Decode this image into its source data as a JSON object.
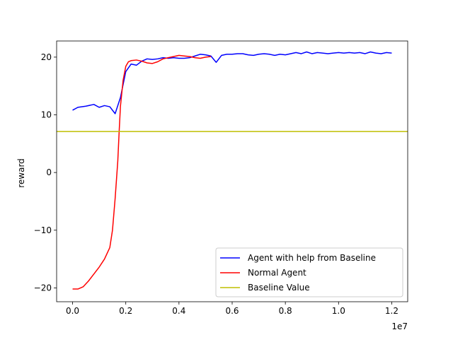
{
  "chart_data": {
    "type": "line",
    "title": "",
    "xlabel": "",
    "ylabel": "reward",
    "x_offset_label": "1e7",
    "xlim": [
      -0.06,
      1.26
    ],
    "ylim": [
      -22.4,
      22.8
    ],
    "x_ticks": [
      0.0,
      0.2,
      0.4,
      0.6,
      0.8,
      1.0,
      1.2
    ],
    "x_tick_labels": [
      "0.0",
      "0.2",
      "0.4",
      "0.6",
      "0.8",
      "1.0",
      "1.2"
    ],
    "y_ticks": [
      -20,
      -10,
      0,
      10,
      20
    ],
    "y_tick_labels": [
      "−20",
      "−10",
      "0",
      "10",
      "20"
    ],
    "grid": false,
    "legend_position": "lower-right",
    "series": [
      {
        "name": "Agent with help from Baseline",
        "color": "#0000ff",
        "x": [
          0.0,
          0.02,
          0.05,
          0.08,
          0.1,
          0.12,
          0.14,
          0.16,
          0.18,
          0.2,
          0.22,
          0.24,
          0.26,
          0.28,
          0.3,
          0.32,
          0.34,
          0.36,
          0.38,
          0.4,
          0.42,
          0.44,
          0.46,
          0.48,
          0.5,
          0.52,
          0.54,
          0.56,
          0.58,
          0.6,
          0.62,
          0.64,
          0.66,
          0.68,
          0.7,
          0.72,
          0.74,
          0.76,
          0.78,
          0.8,
          0.82,
          0.84,
          0.86,
          0.88,
          0.9,
          0.92,
          0.94,
          0.96,
          0.98,
          1.0,
          1.02,
          1.04,
          1.06,
          1.08,
          1.1,
          1.12,
          1.14,
          1.16,
          1.18,
          1.2
        ],
        "y": [
          10.8,
          11.3,
          11.5,
          11.8,
          11.3,
          11.6,
          11.4,
          10.2,
          13.0,
          17.5,
          18.8,
          18.6,
          19.3,
          19.7,
          19.6,
          19.7,
          19.9,
          19.8,
          19.9,
          19.8,
          19.8,
          19.9,
          20.2,
          20.5,
          20.4,
          20.2,
          19.1,
          20.3,
          20.5,
          20.5,
          20.6,
          20.6,
          20.4,
          20.3,
          20.5,
          20.6,
          20.5,
          20.3,
          20.5,
          20.4,
          20.6,
          20.8,
          20.6,
          20.9,
          20.6,
          20.8,
          20.7,
          20.6,
          20.7,
          20.8,
          20.7,
          20.8,
          20.7,
          20.8,
          20.6,
          20.9,
          20.7,
          20.6,
          20.8,
          20.7
        ]
      },
      {
        "name": "Normal Agent",
        "color": "#ff0000",
        "x": [
          0.0,
          0.02,
          0.04,
          0.06,
          0.08,
          0.1,
          0.12,
          0.14,
          0.15,
          0.16,
          0.17,
          0.175,
          0.18,
          0.19,
          0.2,
          0.21,
          0.22,
          0.24,
          0.26,
          0.28,
          0.3,
          0.32,
          0.34,
          0.36,
          0.38,
          0.4,
          0.42,
          0.44,
          0.46,
          0.48,
          0.5,
          0.52
        ],
        "y": [
          -20.2,
          -20.2,
          -19.8,
          -18.8,
          -17.6,
          -16.4,
          -15.0,
          -13.0,
          -10.0,
          -4.5,
          2.0,
          7.0,
          11.5,
          16.0,
          18.4,
          19.2,
          19.4,
          19.5,
          19.3,
          19.0,
          18.9,
          19.2,
          19.7,
          19.9,
          20.1,
          20.3,
          20.2,
          20.1,
          19.9,
          19.8,
          20.0,
          20.1
        ]
      },
      {
        "name": "Baseline Value",
        "color": "#bfbf00",
        "y_constant": 7.1
      }
    ]
  }
}
